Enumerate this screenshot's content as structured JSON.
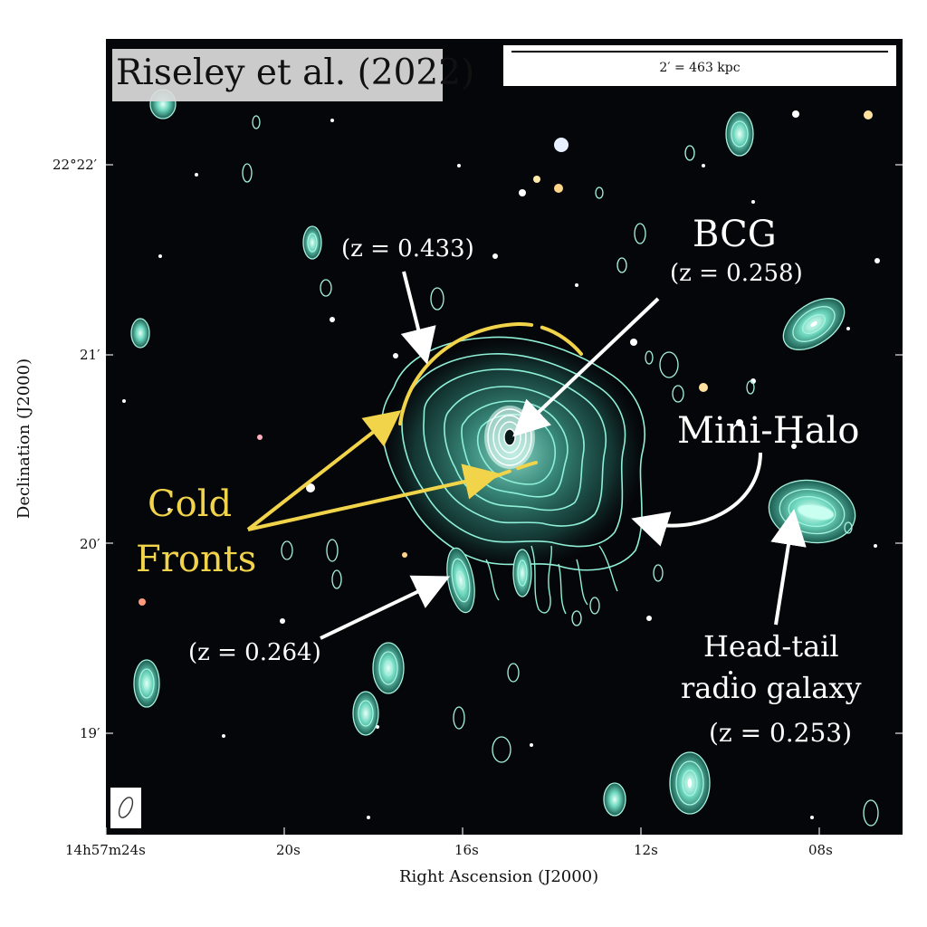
{
  "credit": "Riseley et al. (2022)",
  "scale_bar": "2′ = 463 kpc",
  "axes": {
    "xlabel": "Right Ascension (J2000)",
    "ylabel": "Declination (J2000)",
    "xticks": [
      "14h57m24s",
      "20s",
      "16s",
      "12s",
      "08s"
    ],
    "yticks": [
      "22°22′",
      "21′",
      "20′",
      "19′"
    ]
  },
  "annotations": {
    "bcg": "BCG",
    "bcg_z": "(z = 0.258)",
    "z433": "(z = 0.433)",
    "mini_halo": "Mini-Halo",
    "cold": "Cold",
    "fronts": "Fronts",
    "z264": "(z = 0.264)",
    "headtail_1": "Head-tail",
    "headtail_2": "radio galaxy",
    "headtail_z": "(z = 0.253)"
  },
  "colors": {
    "background": "#05060a",
    "contour": "#8ff0d8",
    "fill": "#2d8f7e",
    "cold_front": "#f2d44a",
    "arrow": "#ffffff"
  }
}
